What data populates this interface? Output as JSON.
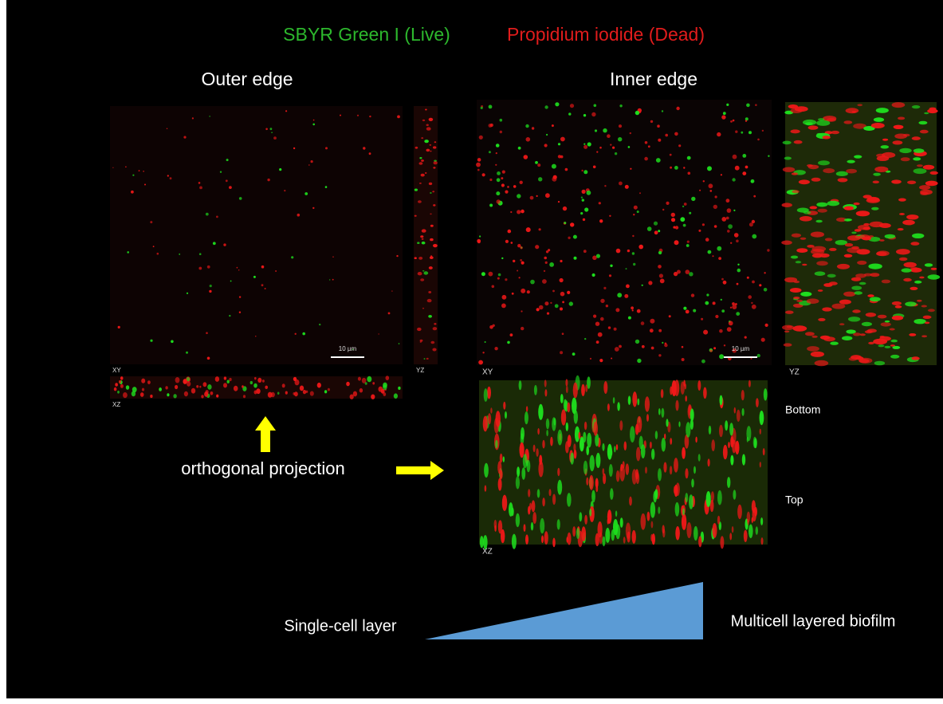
{
  "header": {
    "legend_live": "SBYR Green I (Live)",
    "legend_dead": "Propidium iodide (Dead)"
  },
  "panels": [
    {
      "title": "Outer edge",
      "xy_label": "XY",
      "yz_label": "YZ",
      "xz_label": "XZ",
      "scale_bar": "10 µm"
    },
    {
      "title": "Inner edge",
      "xy_label": "XY",
      "yz_label": "YZ",
      "xz_label": "XZ",
      "scale_bar": "10 µm",
      "depth_labels": [
        "Bottom",
        "Top"
      ]
    }
  ],
  "annotation": "orthogonal projection",
  "gradient": {
    "start": "Single-cell layer",
    "end": "Multicell layered biofilm"
  }
}
